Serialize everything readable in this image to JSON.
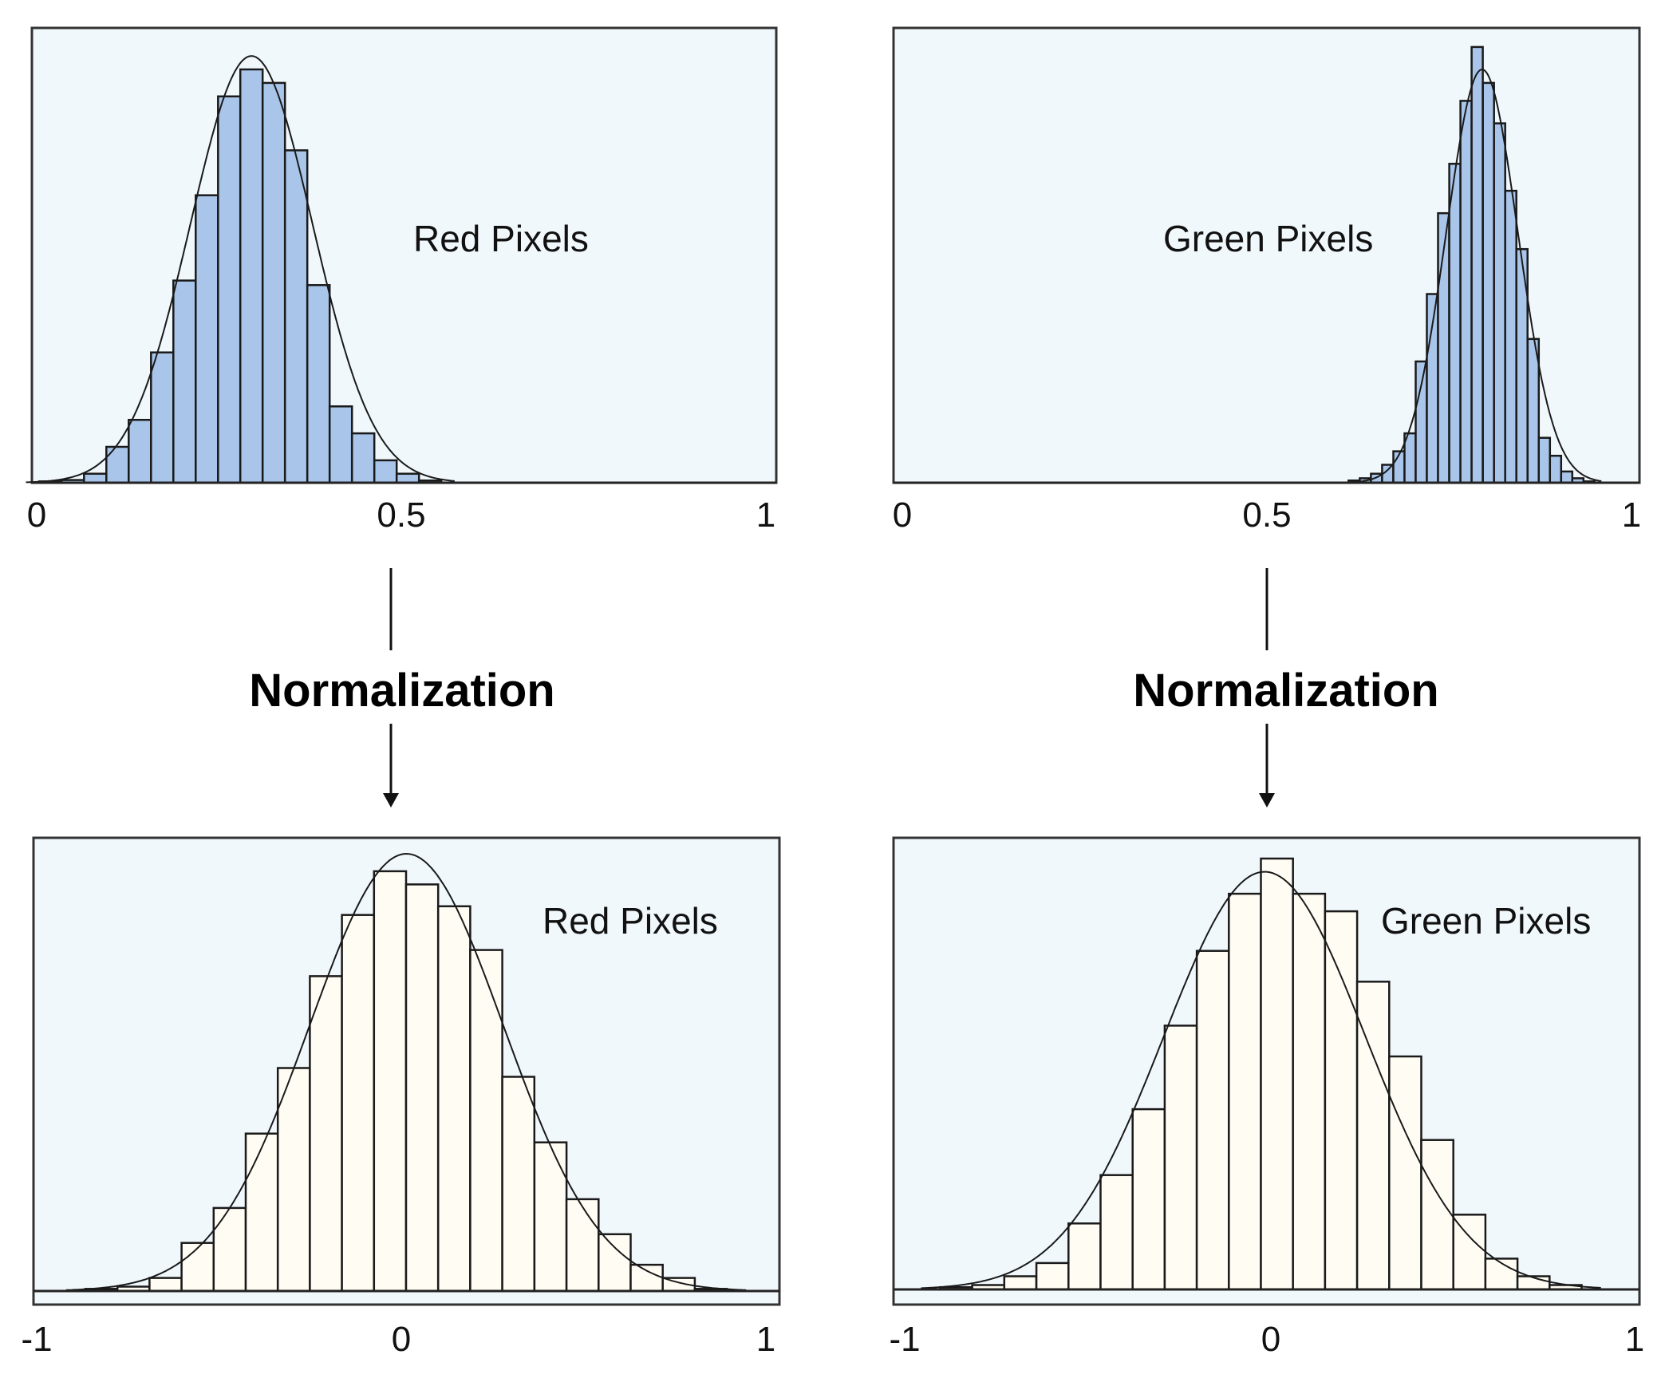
{
  "colors": {
    "panel_background": "#f1f8fc",
    "before_bars": "#a9c6ea",
    "after_bars": "#fffdf3",
    "outline": "#1a1a1a"
  },
  "arrows": {
    "left_label": "Normalization",
    "right_label": "Normalization"
  },
  "chart_data": [
    {
      "type": "bar",
      "label": "Red Pixels",
      "stage": "before",
      "xlim": [
        0,
        1
      ],
      "xticks": [
        "0",
        "0.5",
        "1"
      ],
      "bin_width": 0.03,
      "bin_starts": [
        0.01,
        0.04,
        0.07,
        0.1,
        0.13,
        0.16,
        0.19,
        0.22,
        0.25,
        0.28,
        0.31,
        0.34,
        0.37,
        0.4,
        0.43,
        0.46,
        0.49,
        0.52
      ],
      "values": [
        0.3,
        0.6,
        2.0,
        8.0,
        14.0,
        29.0,
        45.0,
        64.0,
        86.0,
        92.0,
        89.0,
        74.0,
        44.0,
        17.0,
        11.0,
        5.0,
        2.0,
        0.5
      ],
      "fit_curve": {
        "kind": "normal",
        "mean": 0.295,
        "sd": 0.082,
        "peak": 95.0
      }
    },
    {
      "type": "bar",
      "label": "Green Pixels",
      "stage": "before",
      "xlim": [
        0,
        1
      ],
      "xticks": [
        "0",
        "0.5",
        "1"
      ],
      "bin_width": 0.015,
      "bin_starts": [
        0.61,
        0.625,
        0.64,
        0.655,
        0.67,
        0.685,
        0.7,
        0.715,
        0.73,
        0.745,
        0.76,
        0.775,
        0.79,
        0.805,
        0.82,
        0.835,
        0.85,
        0.865,
        0.88,
        0.895,
        0.91,
        0.925
      ],
      "values": [
        0.5,
        1.0,
        2.0,
        4.0,
        7.0,
        11.0,
        27.0,
        42.0,
        60.0,
        71.0,
        85.0,
        97.0,
        89.0,
        80.0,
        65.0,
        52.0,
        32.0,
        10.0,
        6.0,
        2.5,
        1.0,
        0.3
      ],
      "fit_curve": {
        "kind": "normal",
        "mean": 0.789,
        "sd": 0.048,
        "peak": 92.0
      }
    },
    {
      "type": "bar",
      "label": "Red Pixels",
      "stage": "after",
      "xlim": [
        -1,
        1
      ],
      "xticks": [
        "-1",
        "0",
        "1"
      ],
      "bin_width": 0.086,
      "bin_starts": [
        -0.861,
        -0.775,
        -0.689,
        -0.603,
        -0.517,
        -0.431,
        -0.345,
        -0.259,
        -0.173,
        -0.087,
        -0.001,
        0.085,
        0.171,
        0.257,
        0.343,
        0.429,
        0.515,
        0.601,
        0.687,
        0.773
      ],
      "values": [
        0.5,
        1.0,
        3.0,
        11.0,
        19.0,
        36.0,
        51.0,
        72.0,
        86.0,
        96.0,
        93.0,
        88.0,
        78.0,
        49.0,
        34.0,
        21.0,
        13.0,
        6.0,
        3.0,
        0.5
      ],
      "fit_curve": {
        "kind": "normal",
        "mean": 0.0,
        "sd": 0.26,
        "peak": 100.0
      }
    },
    {
      "type": "bar",
      "label": "Green Pixels",
      "stage": "after",
      "xlim": [
        -1,
        1
      ],
      "xticks": [
        "-1",
        "0",
        "1"
      ],
      "bin_width": 0.086,
      "bin_starts": [
        -0.875,
        -0.789,
        -0.703,
        -0.617,
        -0.531,
        -0.445,
        -0.359,
        -0.273,
        -0.187,
        -0.101,
        -0.015,
        0.071,
        0.157,
        0.243,
        0.329,
        0.415,
        0.501,
        0.587,
        0.673,
        0.759
      ],
      "values": [
        0.5,
        1.0,
        3.0,
        6.0,
        15.0,
        26.0,
        41.0,
        60.0,
        77.0,
        90.0,
        98.0,
        90.0,
        86.0,
        70.0,
        53.0,
        34.0,
        17.0,
        7.0,
        3.0,
        1.0
      ],
      "fit_curve": {
        "kind": "normal",
        "mean": -0.005,
        "sd": 0.27,
        "peak": 95.0
      }
    }
  ]
}
